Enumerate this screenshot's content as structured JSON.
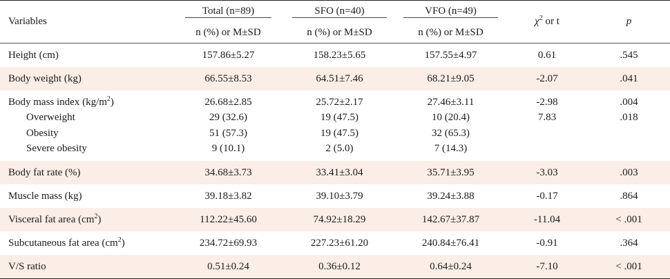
{
  "header": {
    "variables": "Variables",
    "groups": [
      {
        "label": "Total (n=89)",
        "sub": "n (%) or M±SD"
      },
      {
        "label": "SFO (n=40)",
        "sub": "n (%) or M±SD"
      },
      {
        "label": "VFO (n=49)",
        "sub": "n (%) or M±SD"
      }
    ],
    "stat_label_symbol": "χ",
    "stat_label_sup": "2",
    "stat_label_rest": " or t",
    "p_label": "p"
  },
  "rows": [
    {
      "label": "Height (cm)",
      "total": "157.86±5.27",
      "sfo": "158.23±5.65",
      "vfo": "157.55±4.97",
      "stat": "0.61",
      "p": ".545",
      "shaded": false
    },
    {
      "label": "Body weight (kg)",
      "total": "66.55±8.53",
      "sfo": "64.51±7.46",
      "vfo": "68.21±9.05",
      "stat": "-2.07",
      "p": ".041",
      "shaded": true
    },
    {
      "label_pre": "Body mass index (kg/m",
      "label_sup": "2",
      "label_post": ")",
      "total": "26.68±2.85",
      "sfo": "25.72±2.17",
      "vfo": "27.46±3.11",
      "stat": "-2.98",
      "p": ".004"
    },
    {
      "label": "Overweight",
      "total": "29 (32.6)",
      "sfo": "19 (47.5)",
      "vfo": "10 (20.4)",
      "stat": "7.83",
      "p": ".018"
    },
    {
      "label": "Obesity",
      "total": "51 (57.3)",
      "sfo": "19 (47.5)",
      "vfo": "32 (65.3)",
      "stat": "",
      "p": ""
    },
    {
      "label": "Severe obesity",
      "total": "9 (10.1)",
      "sfo": "2 (5.0)",
      "vfo": "7 (14.3)",
      "stat": "",
      "p": ""
    },
    {
      "label": "Body fat rate (%)",
      "total": "34.68±3.73",
      "sfo": "33.41±3.04",
      "vfo": "35.71±3.95",
      "stat": "-3.03",
      "p": ".003",
      "shaded": true
    },
    {
      "label": "Muscle mass (kg)",
      "total": "39.18±3.82",
      "sfo": "39.10±3.79",
      "vfo": "39.24±3.88",
      "stat": "-0.17",
      "p": ".864",
      "shaded": false
    },
    {
      "label_pre": "Visceral fat area (cm",
      "label_sup": "2",
      "label_post": ")",
      "total": "112.22±45.60",
      "sfo": "74.92±18.29",
      "vfo": "142.67±37.87",
      "stat": "-11.04",
      "p": "< .001",
      "shaded": true
    },
    {
      "label_pre": "Subcutaneous fat area (cm",
      "label_sup": "2",
      "label_post": ")",
      "total": "234.72±69.93",
      "sfo": "227.23±61.20",
      "vfo": "240.84±76.41",
      "stat": "-0.91",
      "p": ".364",
      "shaded": false
    },
    {
      "label": "V/S ratio",
      "total": "0.51±0.24",
      "sfo": "0.36±0.12",
      "vfo": "0.64±0.24",
      "stat": "-7.10",
      "p": "< .001",
      "shaded": true
    }
  ]
}
